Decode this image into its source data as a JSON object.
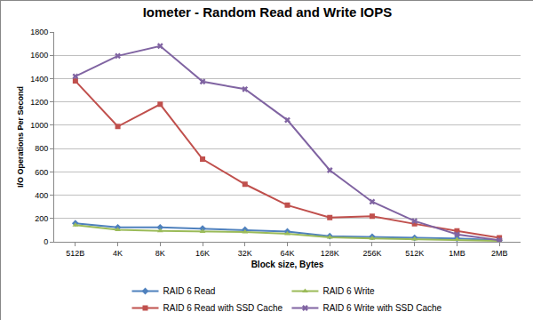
{
  "chart_data": {
    "type": "line",
    "title": "Iometer - Random Read and Write IOPS",
    "x_label": "Block size, Bytes",
    "y_label": "I/O Operations Per Second",
    "categories": [
      "512B",
      "4K",
      "8K",
      "16K",
      "32K",
      "64K",
      "128K",
      "256K",
      "512K",
      "1MB",
      "2MB"
    ],
    "series": [
      {
        "name": "RAID 6 Read",
        "color": "#4f81bd",
        "marker": "diamond",
        "values": [
          160,
          125,
          125,
          115,
          105,
          90,
          50,
          45,
          35,
          30,
          15
        ]
      },
      {
        "name": "RAID 6 Write",
        "color": "#9bbb59",
        "marker": "triangle",
        "values": [
          145,
          105,
          95,
          90,
          85,
          70,
          40,
          30,
          25,
          20,
          10
        ]
      },
      {
        "name": "RAID 6 Read with SSD Cache",
        "color": "#c0504d",
        "marker": "square",
        "values": [
          1380,
          990,
          1180,
          710,
          495,
          315,
          210,
          220,
          155,
          95,
          35
        ]
      },
      {
        "name": "RAID 6 Write with SSD Cache",
        "color": "#8064a2",
        "marker": "x",
        "values": [
          1420,
          1595,
          1680,
          1375,
          1310,
          1045,
          615,
          345,
          180,
          65,
          15
        ]
      }
    ],
    "ylim": [
      0,
      1800
    ],
    "yticks": [
      0,
      200,
      400,
      600,
      800,
      1000,
      1200,
      1400,
      1600,
      1800
    ],
    "grid": true,
    "legend": "bottom"
  }
}
